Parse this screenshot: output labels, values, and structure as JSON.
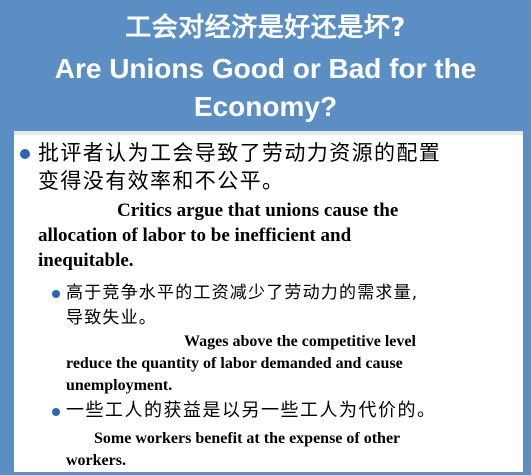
{
  "title": {
    "zh": "工会对经济是好还是坏?",
    "en_line1": "Are Unions Good or Bad for the",
    "en_line2": "Economy?"
  },
  "bullets": [
    {
      "zh_lines": [
        "批评者认为工会导致了劳动力资源的配置",
        "变得没有效率和不公平。"
      ],
      "en_lines": [
        "Critics argue that unions cause the",
        "allocation of labor to be inefficient and",
        "inequitable."
      ]
    },
    {
      "zh_lines": [
        "高于竞争水平的工资减少了劳动力的需求量,",
        "导致失业。"
      ],
      "en_lines": [
        "Wages above the competitive level",
        "reduce the quantity of labor demanded and cause",
        "unemployment."
      ]
    },
    {
      "zh_lines": [
        "一些工人的获益是以另一些工人为代价的。"
      ],
      "en_lines": [
        "Some workers benefit at the expense of other",
        "workers."
      ]
    }
  ],
  "colors": {
    "background": "#5b8fc4",
    "content_background": "#ffffff",
    "bullet": "#2a66b3",
    "title_text": "#ffffff"
  }
}
